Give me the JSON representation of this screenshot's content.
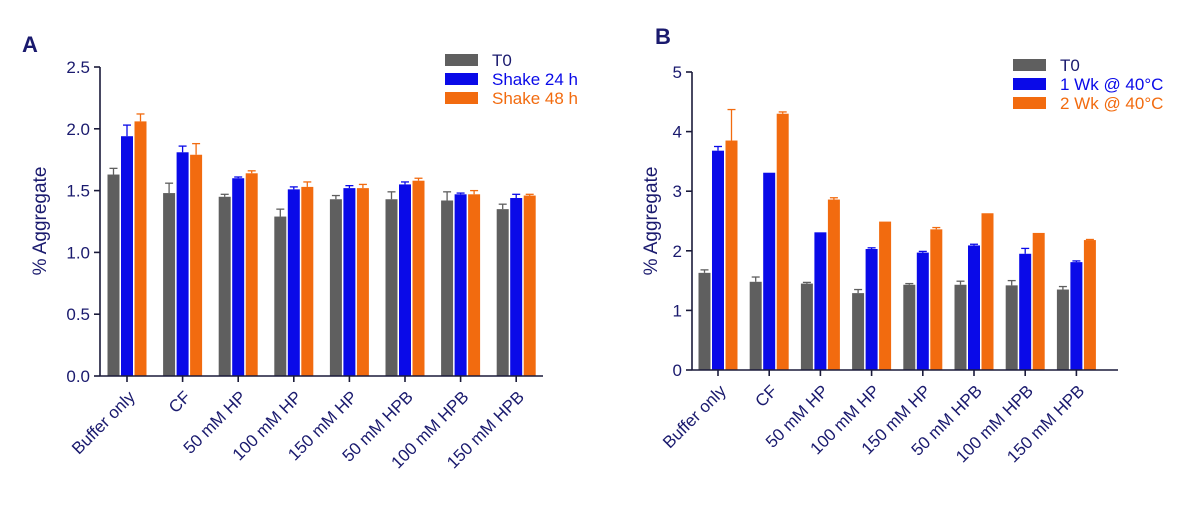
{
  "chart_data": [
    {
      "panel": "A",
      "type": "bar",
      "title": "",
      "xlabel": "",
      "ylabel": "% Aggregate",
      "ylim": [
        0,
        2.5
      ],
      "yticks": [
        "0.0",
        "0.5",
        "1.0",
        "1.5",
        "2.0",
        "2.5"
      ],
      "categories": [
        "Buffer only",
        "CF",
        "50 mM HP",
        "100 mM HP",
        "150 mM HP",
        "50 mM HPB",
        "100 mM HPB",
        "150 mM HPB"
      ],
      "legend_position": "top-right",
      "series": [
        {
          "name": "T0",
          "color": "#5f5f5f",
          "values": [
            1.63,
            1.48,
            1.45,
            1.29,
            1.43,
            1.43,
            1.42,
            1.35
          ],
          "errors": [
            0.05,
            0.08,
            0.02,
            0.06,
            0.03,
            0.06,
            0.07,
            0.04
          ]
        },
        {
          "name": "Shake 24 h",
          "color": "#0a0ae8",
          "values": [
            1.94,
            1.81,
            1.6,
            1.51,
            1.52,
            1.55,
            1.47,
            1.44
          ],
          "errors": [
            0.09,
            0.05,
            0.01,
            0.02,
            0.02,
            0.02,
            0.01,
            0.03
          ]
        },
        {
          "name": "Shake 48 h",
          "color": "#f26b0f",
          "values": [
            2.06,
            1.79,
            1.64,
            1.53,
            1.52,
            1.58,
            1.47,
            1.46
          ],
          "errors": [
            0.06,
            0.09,
            0.02,
            0.04,
            0.03,
            0.02,
            0.03,
            0.01
          ]
        }
      ]
    },
    {
      "panel": "B",
      "type": "bar",
      "title": "",
      "xlabel": "",
      "ylabel": "% Aggregate",
      "ylim": [
        0,
        5
      ],
      "yticks": [
        "0",
        "1",
        "2",
        "3",
        "4",
        "5"
      ],
      "categories": [
        "Buffer only",
        "CF",
        "50 mM HP",
        "100 mM HP",
        "150 mM HP",
        "50 mM HPB",
        "100 mM HPB",
        "150 mM HPB"
      ],
      "legend_position": "top-right",
      "series": [
        {
          "name": "T0",
          "color": "#5f5f5f",
          "values": [
            1.63,
            1.48,
            1.45,
            1.29,
            1.43,
            1.43,
            1.42,
            1.35
          ],
          "errors": [
            0.05,
            0.08,
            0.02,
            0.06,
            0.02,
            0.06,
            0.08,
            0.05
          ]
        },
        {
          "name": "1 Wk @ 40°C",
          "color": "#0a0ae8",
          "values": [
            3.68,
            3.31,
            2.31,
            2.03,
            1.97,
            2.09,
            1.95,
            1.81
          ],
          "errors": [
            0.07,
            0.0,
            0.0,
            0.02,
            0.02,
            0.02,
            0.09,
            0.02
          ]
        },
        {
          "name": "2 Wk @ 40°C",
          "color": "#f26b0f",
          "values": [
            3.85,
            4.3,
            2.86,
            2.49,
            2.36,
            2.63,
            2.3,
            2.18
          ],
          "errors": [
            0.52,
            0.03,
            0.03,
            0.0,
            0.03,
            0.0,
            0.0,
            0.01
          ]
        }
      ]
    }
  ]
}
